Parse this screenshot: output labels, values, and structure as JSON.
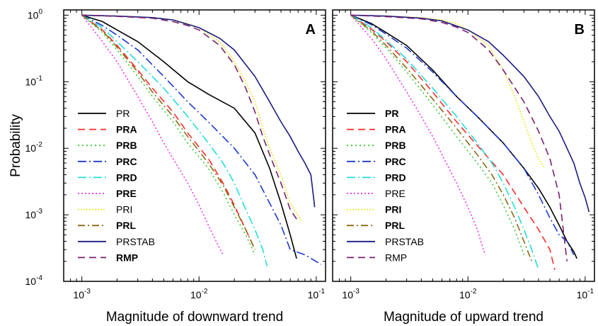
{
  "colors": {
    "PR": "#000000",
    "PRA": "#ff2a2a",
    "PRB": "#33cc33",
    "PRC": "#1a3acc",
    "PRD": "#22dddd",
    "PRE": "#ee33ee",
    "PRI": "#e8e830",
    "PRL": "#8b6914",
    "PRSTAB": "#1a1a80",
    "RMP": "#7b1f6e"
  },
  "chart_data": [
    {
      "type": "line",
      "panel_label": "A",
      "xlabel": "Magnitude of downward trend",
      "ylabel": "Probability",
      "xscale": "log",
      "yscale": "log",
      "xlim": [
        0.0007,
        0.12
      ],
      "ylim": [
        0.0001,
        1.2
      ],
      "xticks": [
        {
          "v": 0.001,
          "b": "10",
          "e": "-3"
        },
        {
          "v": 0.01,
          "b": "10",
          "e": "-2"
        },
        {
          "v": 0.1,
          "b": "10",
          "e": "-1"
        }
      ],
      "yticks": [
        {
          "v": 1,
          "b": "10",
          "e": "0"
        },
        {
          "v": 0.1,
          "b": "10",
          "e": "-1"
        },
        {
          "v": 0.01,
          "b": "10",
          "e": "-2"
        },
        {
          "v": 0.001,
          "b": "10",
          "e": "-3"
        },
        {
          "v": 0.0001,
          "b": "10",
          "e": "-4"
        }
      ],
      "legend_position": "lower-left",
      "series": [
        {
          "name": "PR",
          "key": "PR",
          "bold": false,
          "dash": "",
          "x": [
            0.001,
            0.0015,
            0.002,
            0.003,
            0.005,
            0.008,
            0.012,
            0.02,
            0.03,
            0.04,
            0.05,
            0.06,
            0.068
          ],
          "y": [
            1.0,
            0.8,
            0.6,
            0.4,
            0.2,
            0.1,
            0.065,
            0.04,
            0.017,
            0.005,
            0.0015,
            0.0005,
            0.00022
          ]
        },
        {
          "name": "PRA",
          "key": "PRA",
          "bold": true,
          "dash": "10,6",
          "x": [
            0.001,
            0.0015,
            0.002,
            0.003,
            0.004,
            0.006,
            0.008,
            0.012,
            0.016,
            0.02,
            0.025,
            0.03
          ],
          "y": [
            1.0,
            0.6,
            0.35,
            0.15,
            0.08,
            0.035,
            0.017,
            0.007,
            0.003,
            0.0014,
            0.0006,
            0.0003
          ]
        },
        {
          "name": "PRB",
          "key": "PRB",
          "bold": true,
          "dash": "2,4",
          "x": [
            0.001,
            0.0015,
            0.002,
            0.003,
            0.004,
            0.006,
            0.008,
            0.012,
            0.016,
            0.02,
            0.025,
            0.03
          ],
          "y": [
            1.0,
            0.55,
            0.3,
            0.12,
            0.06,
            0.025,
            0.012,
            0.005,
            0.0022,
            0.001,
            0.0005,
            0.00025
          ]
        },
        {
          "name": "PRC",
          "key": "PRC",
          "bold": true,
          "dash": "12,4,2,4",
          "x": [
            0.001,
            0.0015,
            0.002,
            0.003,
            0.005,
            0.008,
            0.012,
            0.02,
            0.03,
            0.04,
            0.05,
            0.06,
            0.08,
            0.11
          ],
          "y": [
            1.0,
            0.7,
            0.5,
            0.3,
            0.12,
            0.05,
            0.025,
            0.01,
            0.004,
            0.0015,
            0.0007,
            0.0003,
            0.00025,
            0.00018
          ]
        },
        {
          "name": "PRD",
          "key": "PRD",
          "bold": true,
          "dash": "12,4,2,4",
          "x": [
            0.001,
            0.0015,
            0.002,
            0.003,
            0.005,
            0.008,
            0.012,
            0.016,
            0.02,
            0.025,
            0.03,
            0.035,
            0.038
          ],
          "y": [
            1.0,
            0.65,
            0.4,
            0.2,
            0.08,
            0.03,
            0.012,
            0.006,
            0.003,
            0.0012,
            0.0006,
            0.0003,
            0.00017
          ]
        },
        {
          "name": "PRE",
          "key": "PRE",
          "bold": true,
          "dash": "2,3",
          "x": [
            0.001,
            0.0015,
            0.002,
            0.003,
            0.004,
            0.005,
            0.006,
            0.008,
            0.01,
            0.012,
            0.014,
            0.016
          ],
          "y": [
            1.0,
            0.4,
            0.2,
            0.06,
            0.025,
            0.012,
            0.007,
            0.003,
            0.0014,
            0.0007,
            0.0004,
            0.00025
          ]
        },
        {
          "name": "PRI",
          "key": "PRI",
          "bold": false,
          "dash": "2,2",
          "x": [
            0.001,
            0.002,
            0.004,
            0.006,
            0.008,
            0.01,
            0.015,
            0.02,
            0.025,
            0.03,
            0.035,
            0.04,
            0.05,
            0.06,
            0.075
          ],
          "y": [
            1.0,
            0.97,
            0.92,
            0.85,
            0.75,
            0.65,
            0.4,
            0.2,
            0.1,
            0.05,
            0.02,
            0.01,
            0.004,
            0.0015,
            0.0008
          ]
        },
        {
          "name": "PRL",
          "key": "PRL",
          "bold": true,
          "dash": "10,4,2,4",
          "x": [
            0.001,
            0.0015,
            0.002,
            0.003,
            0.004,
            0.006,
            0.008,
            0.012,
            0.016,
            0.02,
            0.025,
            0.03
          ],
          "y": [
            1.0,
            0.58,
            0.33,
            0.14,
            0.07,
            0.03,
            0.015,
            0.006,
            0.0028,
            0.0013,
            0.0006,
            0.0003
          ]
        },
        {
          "name": "PRSTAB",
          "key": "PRSTAB",
          "bold": false,
          "dash": "",
          "x": [
            0.001,
            0.002,
            0.004,
            0.006,
            0.01,
            0.015,
            0.02,
            0.03,
            0.04,
            0.05,
            0.06,
            0.07,
            0.08,
            0.09,
            0.097
          ],
          "y": [
            1.0,
            0.97,
            0.92,
            0.85,
            0.65,
            0.45,
            0.3,
            0.12,
            0.05,
            0.025,
            0.015,
            0.009,
            0.006,
            0.004,
            0.0013
          ]
        },
        {
          "name": "RMP",
          "key": "RMP",
          "bold": true,
          "dash": "10,6",
          "x": [
            0.001,
            0.002,
            0.004,
            0.006,
            0.008,
            0.01,
            0.015,
            0.02,
            0.025,
            0.03,
            0.035,
            0.04,
            0.05,
            0.06,
            0.07
          ],
          "y": [
            1.0,
            0.96,
            0.9,
            0.8,
            0.7,
            0.6,
            0.35,
            0.18,
            0.08,
            0.035,
            0.015,
            0.008,
            0.003,
            0.0012,
            0.0008
          ]
        }
      ]
    },
    {
      "type": "line",
      "panel_label": "B",
      "xlabel": "Magnitude of upward trend",
      "ylabel": "",
      "xscale": "log",
      "yscale": "log",
      "xlim": [
        0.0007,
        0.12
      ],
      "ylim": [
        0.0001,
        1.2
      ],
      "xticks": [
        {
          "v": 0.001,
          "b": "10",
          "e": "-3"
        },
        {
          "v": 0.01,
          "b": "10",
          "e": "-2"
        },
        {
          "v": 0.1,
          "b": "10",
          "e": "-1"
        }
      ],
      "yticks": [],
      "legend_position": "lower-left",
      "series": [
        {
          "name": "PR",
          "key": "PR",
          "bold": true,
          "dash": "",
          "x": [
            0.001,
            0.0015,
            0.002,
            0.003,
            0.005,
            0.008,
            0.012,
            0.02,
            0.03,
            0.04,
            0.05,
            0.06,
            0.07,
            0.08,
            0.085
          ],
          "y": [
            1.0,
            0.75,
            0.55,
            0.35,
            0.15,
            0.06,
            0.03,
            0.012,
            0.005,
            0.0025,
            0.0013,
            0.0007,
            0.0004,
            0.00028,
            0.00022
          ]
        },
        {
          "name": "PRA",
          "key": "PRA",
          "bold": true,
          "dash": "10,6",
          "x": [
            0.001,
            0.0015,
            0.002,
            0.003,
            0.005,
            0.008,
            0.012,
            0.02,
            0.03,
            0.04,
            0.05,
            0.055
          ],
          "y": [
            1.0,
            0.62,
            0.4,
            0.2,
            0.07,
            0.025,
            0.011,
            0.004,
            0.0013,
            0.0006,
            0.0003,
            0.00015
          ]
        },
        {
          "name": "PRB",
          "key": "PRB",
          "bold": true,
          "dash": "2,4",
          "x": [
            0.001,
            0.0015,
            0.002,
            0.003,
            0.005,
            0.008,
            0.012,
            0.016,
            0.02,
            0.025,
            0.03
          ],
          "y": [
            1.0,
            0.55,
            0.32,
            0.14,
            0.045,
            0.015,
            0.006,
            0.003,
            0.0014,
            0.0006,
            0.00025
          ]
        },
        {
          "name": "PRC",
          "key": "PRC",
          "bold": true,
          "dash": "12,4,2,4",
          "x": [
            0.001,
            0.0015,
            0.002,
            0.003,
            0.005,
            0.008,
            0.012,
            0.02,
            0.03,
            0.04,
            0.05,
            0.06,
            0.07,
            0.08
          ],
          "y": [
            1.0,
            0.72,
            0.52,
            0.32,
            0.14,
            0.06,
            0.03,
            0.012,
            0.005,
            0.002,
            0.0009,
            0.0005,
            0.0004,
            0.00025
          ]
        },
        {
          "name": "PRD",
          "key": "PRD",
          "bold": true,
          "dash": "12,4,2,4",
          "x": [
            0.001,
            0.0015,
            0.002,
            0.003,
            0.005,
            0.008,
            0.012,
            0.016,
            0.02,
            0.025,
            0.03,
            0.035,
            0.04
          ],
          "y": [
            1.0,
            0.65,
            0.42,
            0.22,
            0.08,
            0.03,
            0.012,
            0.006,
            0.003,
            0.0013,
            0.0006,
            0.0003,
            0.00015
          ]
        },
        {
          "name": "PRE",
          "key": "PRE",
          "bold": false,
          "dash": "2,3",
          "x": [
            0.001,
            0.0015,
            0.002,
            0.003,
            0.004,
            0.005,
            0.006,
            0.008,
            0.01,
            0.012,
            0.014
          ],
          "y": [
            1.0,
            0.45,
            0.22,
            0.07,
            0.03,
            0.015,
            0.008,
            0.003,
            0.0013,
            0.0006,
            0.00025
          ]
        },
        {
          "name": "PRI",
          "key": "PRI",
          "bold": true,
          "dash": "2,2",
          "x": [
            0.001,
            0.002,
            0.004,
            0.006,
            0.008,
            0.01,
            0.015,
            0.02,
            0.025,
            0.03,
            0.035,
            0.04,
            0.045
          ],
          "y": [
            1.0,
            0.97,
            0.92,
            0.85,
            0.75,
            0.6,
            0.35,
            0.15,
            0.06,
            0.025,
            0.012,
            0.007,
            0.005
          ]
        },
        {
          "name": "PRL",
          "key": "PRL",
          "bold": true,
          "dash": "10,4,2,4",
          "x": [
            0.001,
            0.0015,
            0.002,
            0.003,
            0.005,
            0.008,
            0.012,
            0.016,
            0.02,
            0.025,
            0.03,
            0.035
          ],
          "y": [
            1.0,
            0.58,
            0.35,
            0.16,
            0.055,
            0.02,
            0.008,
            0.004,
            0.002,
            0.0009,
            0.0004,
            0.0002
          ]
        },
        {
          "name": "PRSTAB",
          "key": "PRSTAB",
          "bold": false,
          "dash": "",
          "x": [
            0.001,
            0.002,
            0.004,
            0.006,
            0.01,
            0.015,
            0.02,
            0.03,
            0.04,
            0.05,
            0.06,
            0.07,
            0.08,
            0.09,
            0.1,
            0.108
          ],
          "y": [
            1.0,
            0.97,
            0.9,
            0.82,
            0.6,
            0.4,
            0.25,
            0.12,
            0.06,
            0.03,
            0.018,
            0.01,
            0.006,
            0.003,
            0.0018,
            0.0011
          ]
        },
        {
          "name": "RMP",
          "key": "RMP",
          "bold": false,
          "dash": "10,6",
          "x": [
            0.001,
            0.002,
            0.004,
            0.006,
            0.008,
            0.01,
            0.015,
            0.02,
            0.03,
            0.04,
            0.05,
            0.06,
            0.065,
            0.07
          ],
          "y": [
            1.0,
            0.95,
            0.88,
            0.78,
            0.66,
            0.55,
            0.3,
            0.15,
            0.05,
            0.018,
            0.007,
            0.002,
            0.0006,
            0.0002
          ]
        }
      ]
    }
  ]
}
